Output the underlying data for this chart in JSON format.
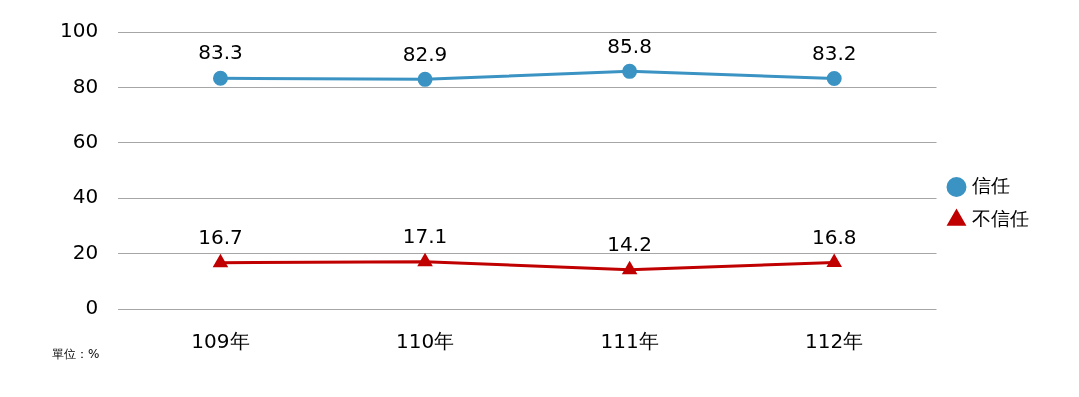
{
  "chart_data": {
    "type": "line",
    "categories": [
      "109年",
      "110年",
      "111年",
      "112年"
    ],
    "series": [
      {
        "name": "信任",
        "color": "#3a93c3",
        "marker": "circle",
        "values": [
          83.3,
          82.9,
          85.8,
          83.2
        ]
      },
      {
        "name": "不信任",
        "color": "#c00000",
        "marker": "triangle",
        "values": [
          16.7,
          17.1,
          14.2,
          16.8
        ]
      }
    ],
    "ylim": [
      0,
      100
    ],
    "yticks": [
      0,
      20,
      40,
      60,
      80,
      100
    ],
    "grid": "y",
    "legend": "right",
    "data_labels": true,
    "annotations": [
      "單位：%"
    ]
  }
}
